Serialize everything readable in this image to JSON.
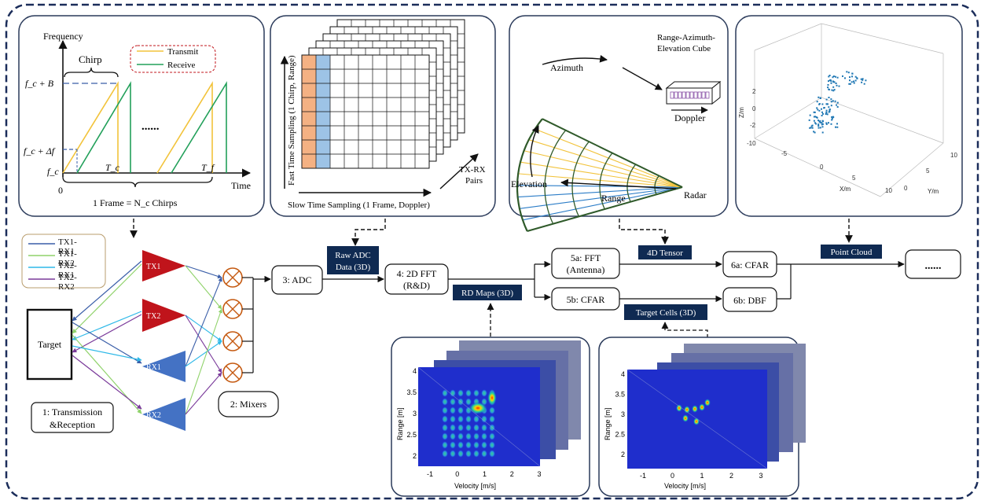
{
  "chirp": {
    "frequency": "Frequency",
    "time": "Time",
    "chirp": "Chirp",
    "fc_plus_b": "f_c + B",
    "fc_plus_df": "f_c + Δf",
    "fc": "f_c",
    "zero": "0",
    "tc": "T_c",
    "tf": "T_f",
    "dots": "......",
    "frame": "1 Frame = N_c Chirps",
    "legend_transmit": "Transmit",
    "legend_receive": "Receive",
    "color_transmit": "#f2c33b",
    "color_receive": "#22a05a"
  },
  "adc_cube": {
    "fast_time": "Fast Time Sampling (1 Chirp, Range)",
    "slow_time": "Slow Time Sampling (1 Frame, Doppler)",
    "pairs_1": "TX-RX",
    "pairs_2": "Pairs"
  },
  "polar": {
    "azimuth": "Azimuth",
    "cube_1": "Range-Azimuth-",
    "cube_2": "Elevation Cube",
    "doppler": "Doppler",
    "elevation": "Elevation",
    "range": "Range",
    "radar": "Radar"
  },
  "pointcloud": {
    "z_label": "Z/m",
    "x_label": "X/m",
    "y_label": "Y/m",
    "z_ticks": [
      "2",
      "0",
      "-2"
    ],
    "x_ticks": [
      "-10",
      "-5",
      "0",
      "5",
      "10"
    ],
    "y_ticks": [
      "10",
      "5",
      "0"
    ]
  },
  "pipeline": {
    "legend": [
      "TX1-RX1",
      "TX1-RX2",
      "TX2-RX1",
      "TX2-RX2"
    ],
    "legend_colors": [
      "#3a5ea8",
      "#8fd26a",
      "#2fb9e8",
      "#7a3a9a"
    ],
    "target": "Target",
    "tx1": "TX1",
    "tx2": "TX2",
    "rx1": "RX1",
    "rx2": "RX2",
    "step1_1": "1: Transmission",
    "step1_2": "&Reception",
    "step2": "2: Mixers",
    "step3": "3: ADC",
    "raw_1": "Raw ADC",
    "raw_2": "Data (3D)",
    "step4_1": "4: 2D FFT",
    "step4_2": "(R&D)",
    "rd_maps": "RD Maps (3D)",
    "step5a_1": "5a: FFT",
    "step5a_2": "(Antenna)",
    "step5b": "5b: CFAR",
    "tensor": "4D Tensor",
    "target_cells": "Target Cells (3D)",
    "step6a": "6a: CFAR",
    "step6b": "6b: DBF",
    "point_cloud": "Point Cloud",
    "dots": "......",
    "tx_color": "#c0141b",
    "rx_color": "#4472c4",
    "tag_color": "#0f2a52"
  },
  "heatmaps": {
    "xlabel": "Velocity [m/s]",
    "ylabel": "Range [m]",
    "xticks": [
      "-1",
      "0",
      "1",
      "2",
      "3"
    ],
    "yticks": [
      "4",
      "3.5",
      "3",
      "2.5",
      "2"
    ]
  }
}
